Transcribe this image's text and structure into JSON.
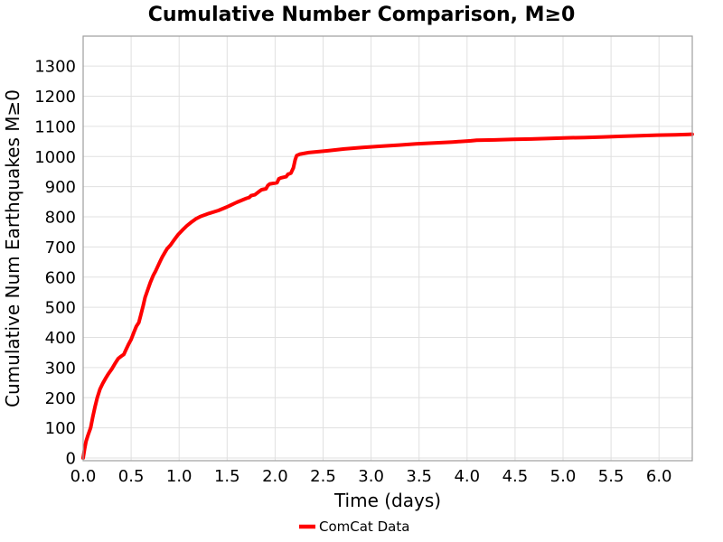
{
  "chart_data": {
    "type": "line",
    "title": "Cumulative Number Comparison, M≥0",
    "xlabel": "Time (days)",
    "ylabel": "Cumulative Num Earthquakes M≥0",
    "xlim": [
      0,
      6.35
    ],
    "ylim": [
      0,
      1400
    ],
    "grid": true,
    "legend_position": "bottom-center",
    "x_ticks": [
      0.0,
      0.5,
      1.0,
      1.5,
      2.0,
      2.5,
      3.0,
      3.5,
      4.0,
      4.5,
      5.0,
      5.5,
      6.0
    ],
    "x_tick_labels": [
      "0.0",
      "0.5",
      "1.0",
      "1.5",
      "2.0",
      "2.5",
      "3.0",
      "3.5",
      "4.0",
      "4.5",
      "5.0",
      "5.5",
      "6.0"
    ],
    "y_ticks": [
      0,
      100,
      200,
      300,
      400,
      500,
      600,
      700,
      800,
      900,
      1000,
      1100,
      1200,
      1300
    ],
    "y_tick_labels": [
      "0",
      "100",
      "200",
      "300",
      "400",
      "500",
      "600",
      "700",
      "800",
      "900",
      "1000",
      "1100",
      "1200",
      "1300"
    ],
    "colors": {
      "series": "#ff0000",
      "gridline": "#e0e0e0",
      "plot_border": "#9e9e9e",
      "text": "#000000",
      "background": "#ffffff"
    },
    "series": [
      {
        "name": "ComCat Data",
        "color": "#ff0000",
        "points": [
          [
            0.0,
            0
          ],
          [
            0.015,
            30
          ],
          [
            0.03,
            55
          ],
          [
            0.05,
            75
          ],
          [
            0.078,
            100
          ],
          [
            0.1,
            135
          ],
          [
            0.125,
            172
          ],
          [
            0.147,
            200
          ],
          [
            0.175,
            228
          ],
          [
            0.205,
            248
          ],
          [
            0.235,
            265
          ],
          [
            0.265,
            280
          ],
          [
            0.3,
            296
          ],
          [
            0.335,
            315
          ],
          [
            0.365,
            330
          ],
          [
            0.395,
            337
          ],
          [
            0.425,
            344
          ],
          [
            0.45,
            362
          ],
          [
            0.475,
            378
          ],
          [
            0.5,
            393
          ],
          [
            0.53,
            418
          ],
          [
            0.555,
            437
          ],
          [
            0.58,
            449
          ],
          [
            0.6,
            473
          ],
          [
            0.625,
            505
          ],
          [
            0.645,
            532
          ],
          [
            0.665,
            550
          ],
          [
            0.7,
            582
          ],
          [
            0.73,
            605
          ],
          [
            0.755,
            620
          ],
          [
            0.78,
            637
          ],
          [
            0.8,
            651
          ],
          [
            0.825,
            667
          ],
          [
            0.85,
            681
          ],
          [
            0.875,
            694
          ],
          [
            0.91,
            706
          ],
          [
            0.945,
            722
          ],
          [
            0.99,
            741
          ],
          [
            1.035,
            756
          ],
          [
            1.08,
            770
          ],
          [
            1.13,
            783
          ],
          [
            1.175,
            793
          ],
          [
            1.22,
            801
          ],
          [
            1.31,
            811
          ],
          [
            1.41,
            821
          ],
          [
            1.5,
            833
          ],
          [
            1.6,
            848
          ],
          [
            1.7,
            861
          ],
          [
            1.73,
            864
          ],
          [
            1.75,
            870
          ],
          [
            1.79,
            873
          ],
          [
            1.83,
            883
          ],
          [
            1.86,
            890
          ],
          [
            1.905,
            893
          ],
          [
            1.925,
            904
          ],
          [
            1.945,
            909
          ],
          [
            2.02,
            913
          ],
          [
            2.04,
            926
          ],
          [
            2.06,
            929
          ],
          [
            2.115,
            933
          ],
          [
            2.135,
            941
          ],
          [
            2.165,
            945
          ],
          [
            2.19,
            962
          ],
          [
            2.21,
            990
          ],
          [
            2.225,
            1003
          ],
          [
            2.26,
            1008
          ],
          [
            2.35,
            1013
          ],
          [
            2.45,
            1016
          ],
          [
            2.55,
            1019
          ],
          [
            2.72,
            1025
          ],
          [
            2.91,
            1030
          ],
          [
            3.1,
            1034
          ],
          [
            3.29,
            1038
          ],
          [
            3.47,
            1042
          ],
          [
            3.66,
            1045
          ],
          [
            3.85,
            1048
          ],
          [
            4.04,
            1052
          ],
          [
            4.1,
            1054
          ],
          [
            4.29,
            1055
          ],
          [
            4.48,
            1057
          ],
          [
            4.67,
            1058
          ],
          [
            4.86,
            1060
          ],
          [
            5.04,
            1062
          ],
          [
            5.23,
            1063
          ],
          [
            5.42,
            1065
          ],
          [
            5.61,
            1067
          ],
          [
            5.8,
            1069
          ],
          [
            5.98,
            1071
          ],
          [
            6.17,
            1072
          ],
          [
            6.346,
            1074
          ]
        ]
      }
    ]
  }
}
